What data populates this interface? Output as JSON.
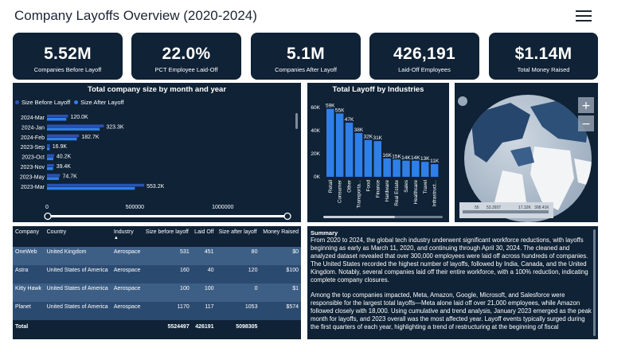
{
  "header": {
    "title": "Company Layoffs Overview (2020-2024)",
    "menu_icon": "hamburger-menu-icon"
  },
  "kpis": [
    {
      "value": "5.52M",
      "label": "Companies Before Layoff"
    },
    {
      "value": "22.0%",
      "label": "PCT Employee Laid-Off"
    },
    {
      "value": "5.1M",
      "label": "Companies After Layoff"
    },
    {
      "value": "426,191",
      "label": "Laid-Off Employees"
    },
    {
      "value": "$1.14M",
      "label": "Total Money Raised"
    }
  ],
  "colors": {
    "panel": "#0f2236",
    "before": "#2a52b7",
    "after": "#2f7fe8",
    "bar": "#2f7fe8"
  },
  "chart_data": [
    {
      "type": "bar",
      "orientation": "horizontal",
      "title": "Total company size by month and year",
      "categories": [
        "2024-Mar",
        "2024-Jan",
        "2024-Feb",
        "2023-Sep",
        "2023-Oct",
        "2023-Nov",
        "2023-May",
        "2023-Mar"
      ],
      "series": [
        {
          "name": "Size Before Layoff",
          "values": [
            120000,
            323300,
            182700,
            16900,
            40200,
            39400,
            74700,
            553200
          ]
        },
        {
          "name": "Size After Layoff",
          "values": [
            110000,
            300000,
            170000,
            15000,
            36000,
            35000,
            68000,
            500000
          ]
        }
      ],
      "data_labels": [
        "120.0K",
        "323.3K",
        "182.7K",
        "16.9K",
        "40.2K",
        "39.4K",
        "74.7K",
        "553.2K"
      ],
      "x_ticks": [
        "0",
        "500000",
        "1000000"
      ],
      "xlim": [
        0,
        1300000
      ],
      "legend": "top-left"
    },
    {
      "type": "bar",
      "title": "Total Layoff by Industries",
      "categories": [
        "Retail",
        "Consumer",
        "Other",
        "Transporta...",
        "Food",
        "Finance",
        "Hardware",
        "Real Estate",
        "Sales",
        "Healthcare",
        "Travel",
        "Infrastruct..."
      ],
      "values": [
        59000,
        55000,
        47000,
        38000,
        32000,
        31000,
        16000,
        15000,
        14000,
        14000,
        13000,
        11000
      ],
      "data_labels": [
        "59K",
        "55K",
        "47K",
        "38K",
        "32K",
        "31K",
        "16K",
        "15K",
        "14K",
        "14K",
        "13K",
        "11K"
      ],
      "y_ticks": [
        "0K",
        "20K",
        "40K",
        "60K"
      ],
      "ylim": [
        0,
        65000
      ]
    }
  ],
  "map": {
    "legend_values": [
      "55",
      "53.3937",
      "17.32K",
      "308.41K"
    ]
  },
  "table": {
    "headers": [
      "Company",
      "Country",
      "Industry",
      "Size before layoff",
      "Laid Off",
      "Size after layoff",
      "Money Raised"
    ],
    "sort_indicator": "▲",
    "rows": [
      [
        "OneWeb",
        "United Kingdom",
        "Aerospace",
        "531",
        "451",
        "80",
        "$0"
      ],
      [
        "Astra",
        "United States of America",
        "Aerospace",
        "160",
        "40",
        "120",
        "$100"
      ],
      [
        "Kitty Hawk",
        "United States of America",
        "Aerospace",
        "100",
        "100",
        "0",
        "$1"
      ],
      [
        "Planet",
        "United States of America",
        "Aerospace",
        "1170",
        "117",
        "1053",
        "$574"
      ]
    ],
    "total": {
      "label": "Total",
      "size_before": "5524497",
      "laid_off": "426191",
      "size_after": "5098305"
    }
  },
  "summary": {
    "heading": "Summary",
    "p1": "From 2020 to 2024, the global tech industry underwent significant workforce reductions, with layoffs beginning as early as March 11, 2020, and continuing through April 30, 2024. The cleaned and analyzed dataset revealed that over 300,000 employees were laid off across hundreds of companies. The United States recorded the highest number of layoffs, followed by India, Canada, and the United Kingdom. Notably, several companies laid off their entire workforce, with a 100% reduction, indicating complete company closures.",
    "p2": "Among the top companies impacted, Meta, Amazon, Google, Microsoft, and Salesforce were responsible for the largest total layoffs—Meta alone laid off over 21,000 employees, while Amazon followed closely with 18,000. Using cumulative and trend analysis, January 2023 emerged as the peak month for layoffs, and 2023 overall was the most affected year. Layoff events typically surged during the first quarters of each year, highlighting a trend of restructuring at the beginning of fiscal"
  }
}
